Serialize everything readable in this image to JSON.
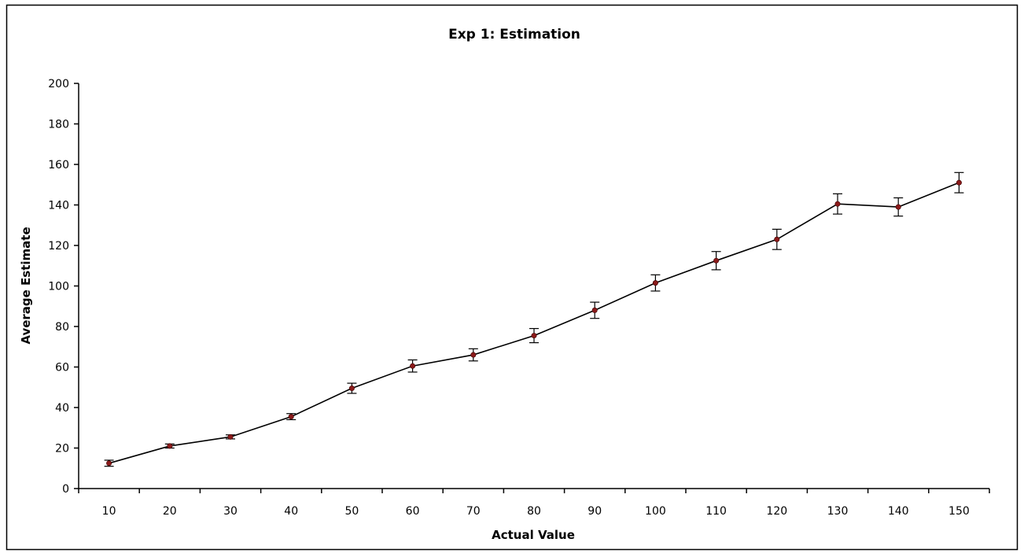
{
  "chart_data": {
    "type": "line",
    "title": "Exp 1: Estimation",
    "xlabel": "Actual Value",
    "ylabel": "Average Estimate",
    "categories": [
      "10",
      "20",
      "30",
      "40",
      "50",
      "60",
      "70",
      "80",
      "90",
      "100",
      "110",
      "120",
      "130",
      "140",
      "150"
    ],
    "y_ticks": [
      "0",
      "20",
      "40",
      "60",
      "80",
      "100",
      "120",
      "140",
      "160",
      "180",
      "200"
    ],
    "ylim": [
      0,
      200
    ],
    "grid": false,
    "legend": "none",
    "series": [
      {
        "values": [
          12.5,
          21,
          25.5,
          35.5,
          49.5,
          60.5,
          66,
          75.5,
          88,
          101.5,
          112.5,
          123,
          140.5,
          139,
          151
        ],
        "error": [
          1.5,
          1,
          1,
          1.5,
          2.5,
          3,
          3,
          3.5,
          4,
          4,
          4.5,
          5,
          5,
          4.5,
          5
        ]
      }
    ],
    "colors": {
      "line": "#000000",
      "marker": "#8b1a1a",
      "errorbar": "#000000",
      "axis": "#000000"
    }
  }
}
